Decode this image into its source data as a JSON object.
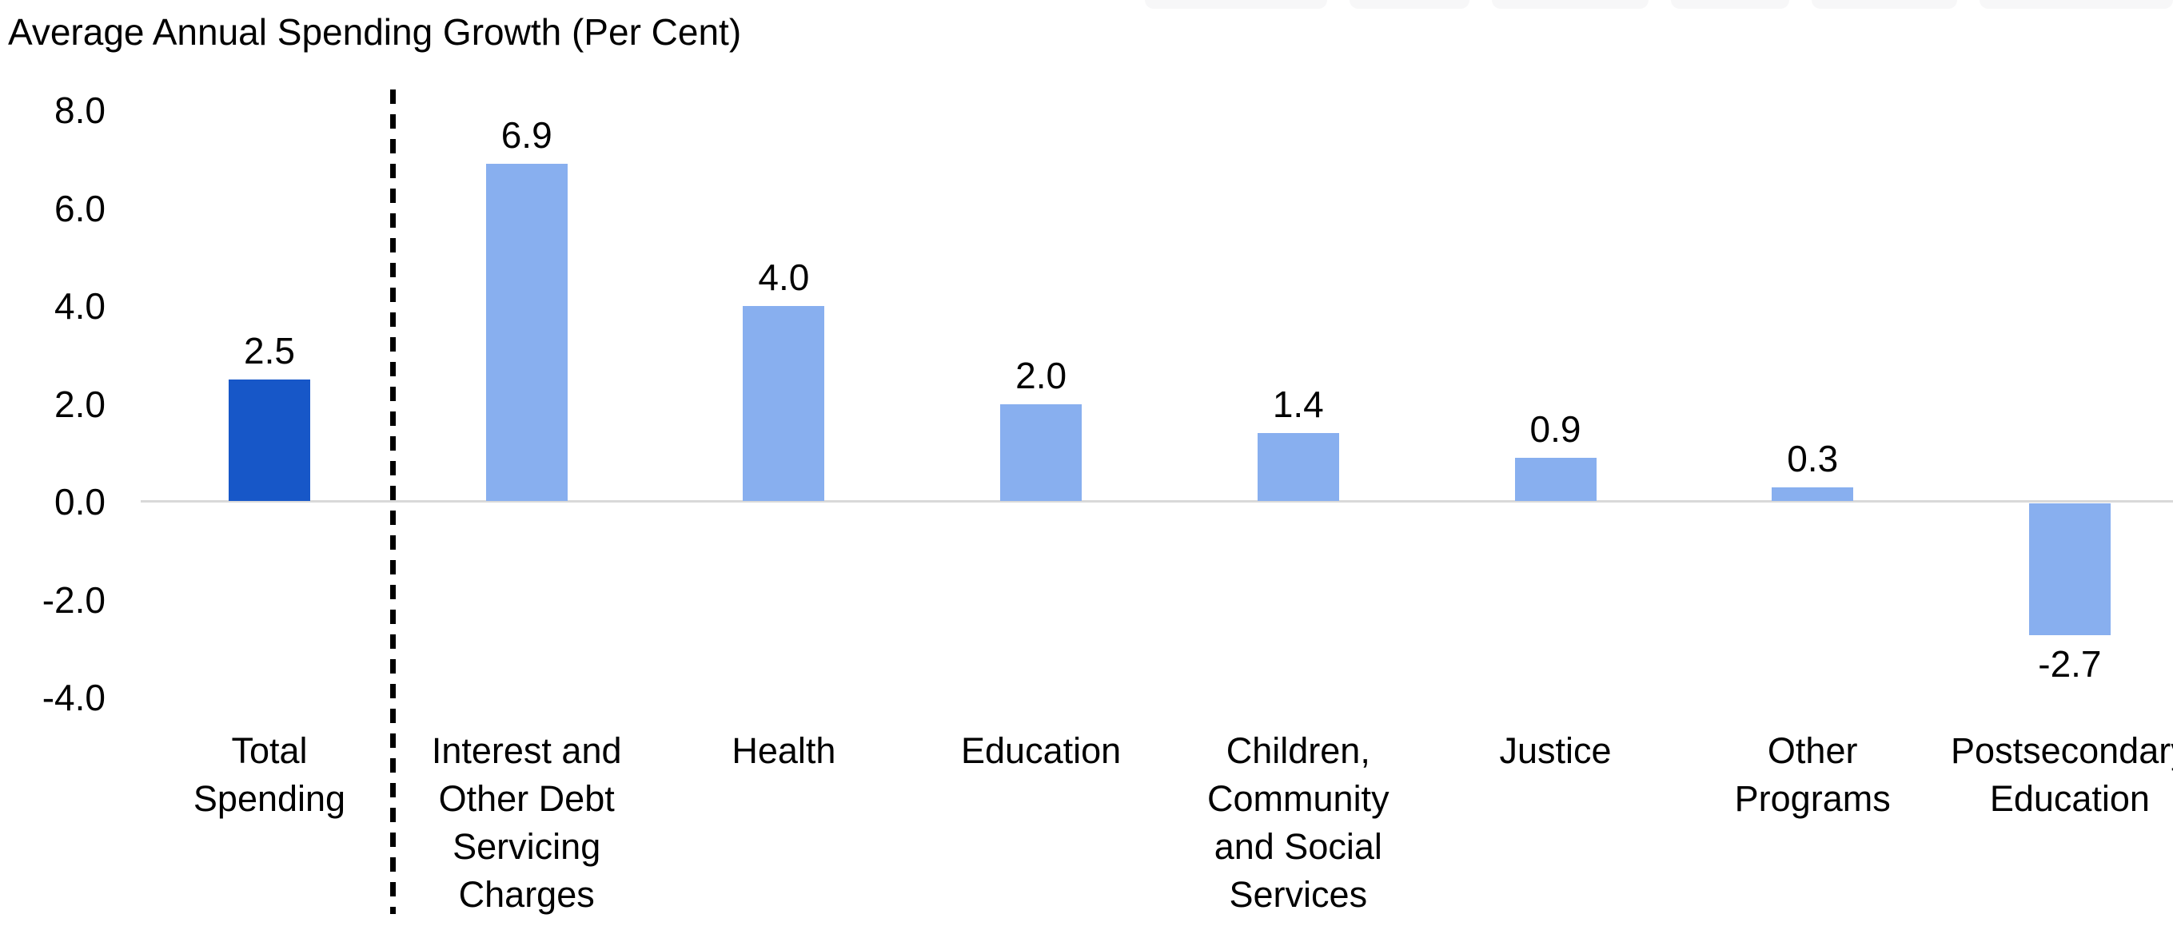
{
  "chart_data": {
    "type": "bar",
    "title": "Average Annual Spending Growth (Per Cent)",
    "xlabel": "",
    "ylabel": "",
    "ylim": [
      -4.0,
      8.0
    ],
    "ytick_step": 2.0,
    "ytick_labels": [
      "8.0",
      "6.0",
      "4.0",
      "2.0",
      "0.0",
      "-2.0",
      "-4.0"
    ],
    "grid": false,
    "legend": false,
    "categories": [
      "Total Spending",
      "Interest and Other Debt Servicing Charges",
      "Health",
      "Education",
      "Children, Community and Social Services",
      "Justice",
      "Other Programs",
      "Postsecondary Education"
    ],
    "category_lines": [
      [
        "Total",
        "Spending"
      ],
      [
        "Interest and",
        "Other Debt",
        "Servicing",
        "Charges"
      ],
      [
        "Health"
      ],
      [
        "Education"
      ],
      [
        "Children,",
        "Community",
        "and Social",
        "Services"
      ],
      [
        "Justice"
      ],
      [
        "Other",
        "Programs"
      ],
      [
        "Postsecondary",
        "Education"
      ]
    ],
    "values": [
      2.5,
      6.9,
      4.0,
      2.0,
      1.4,
      0.9,
      0.3,
      -2.7
    ],
    "data_labels": [
      "2.5",
      "6.9",
      "4.0",
      "2.0",
      "1.4",
      "0.9",
      "0.3",
      "-2.7"
    ],
    "highlight_index": 0,
    "highlight_color": "#1757C8",
    "bar_color": "#88AFEF",
    "axis_color": "#D9D9D9",
    "separator_after_index": 0,
    "separator_style": "dashed-black-vertical"
  }
}
